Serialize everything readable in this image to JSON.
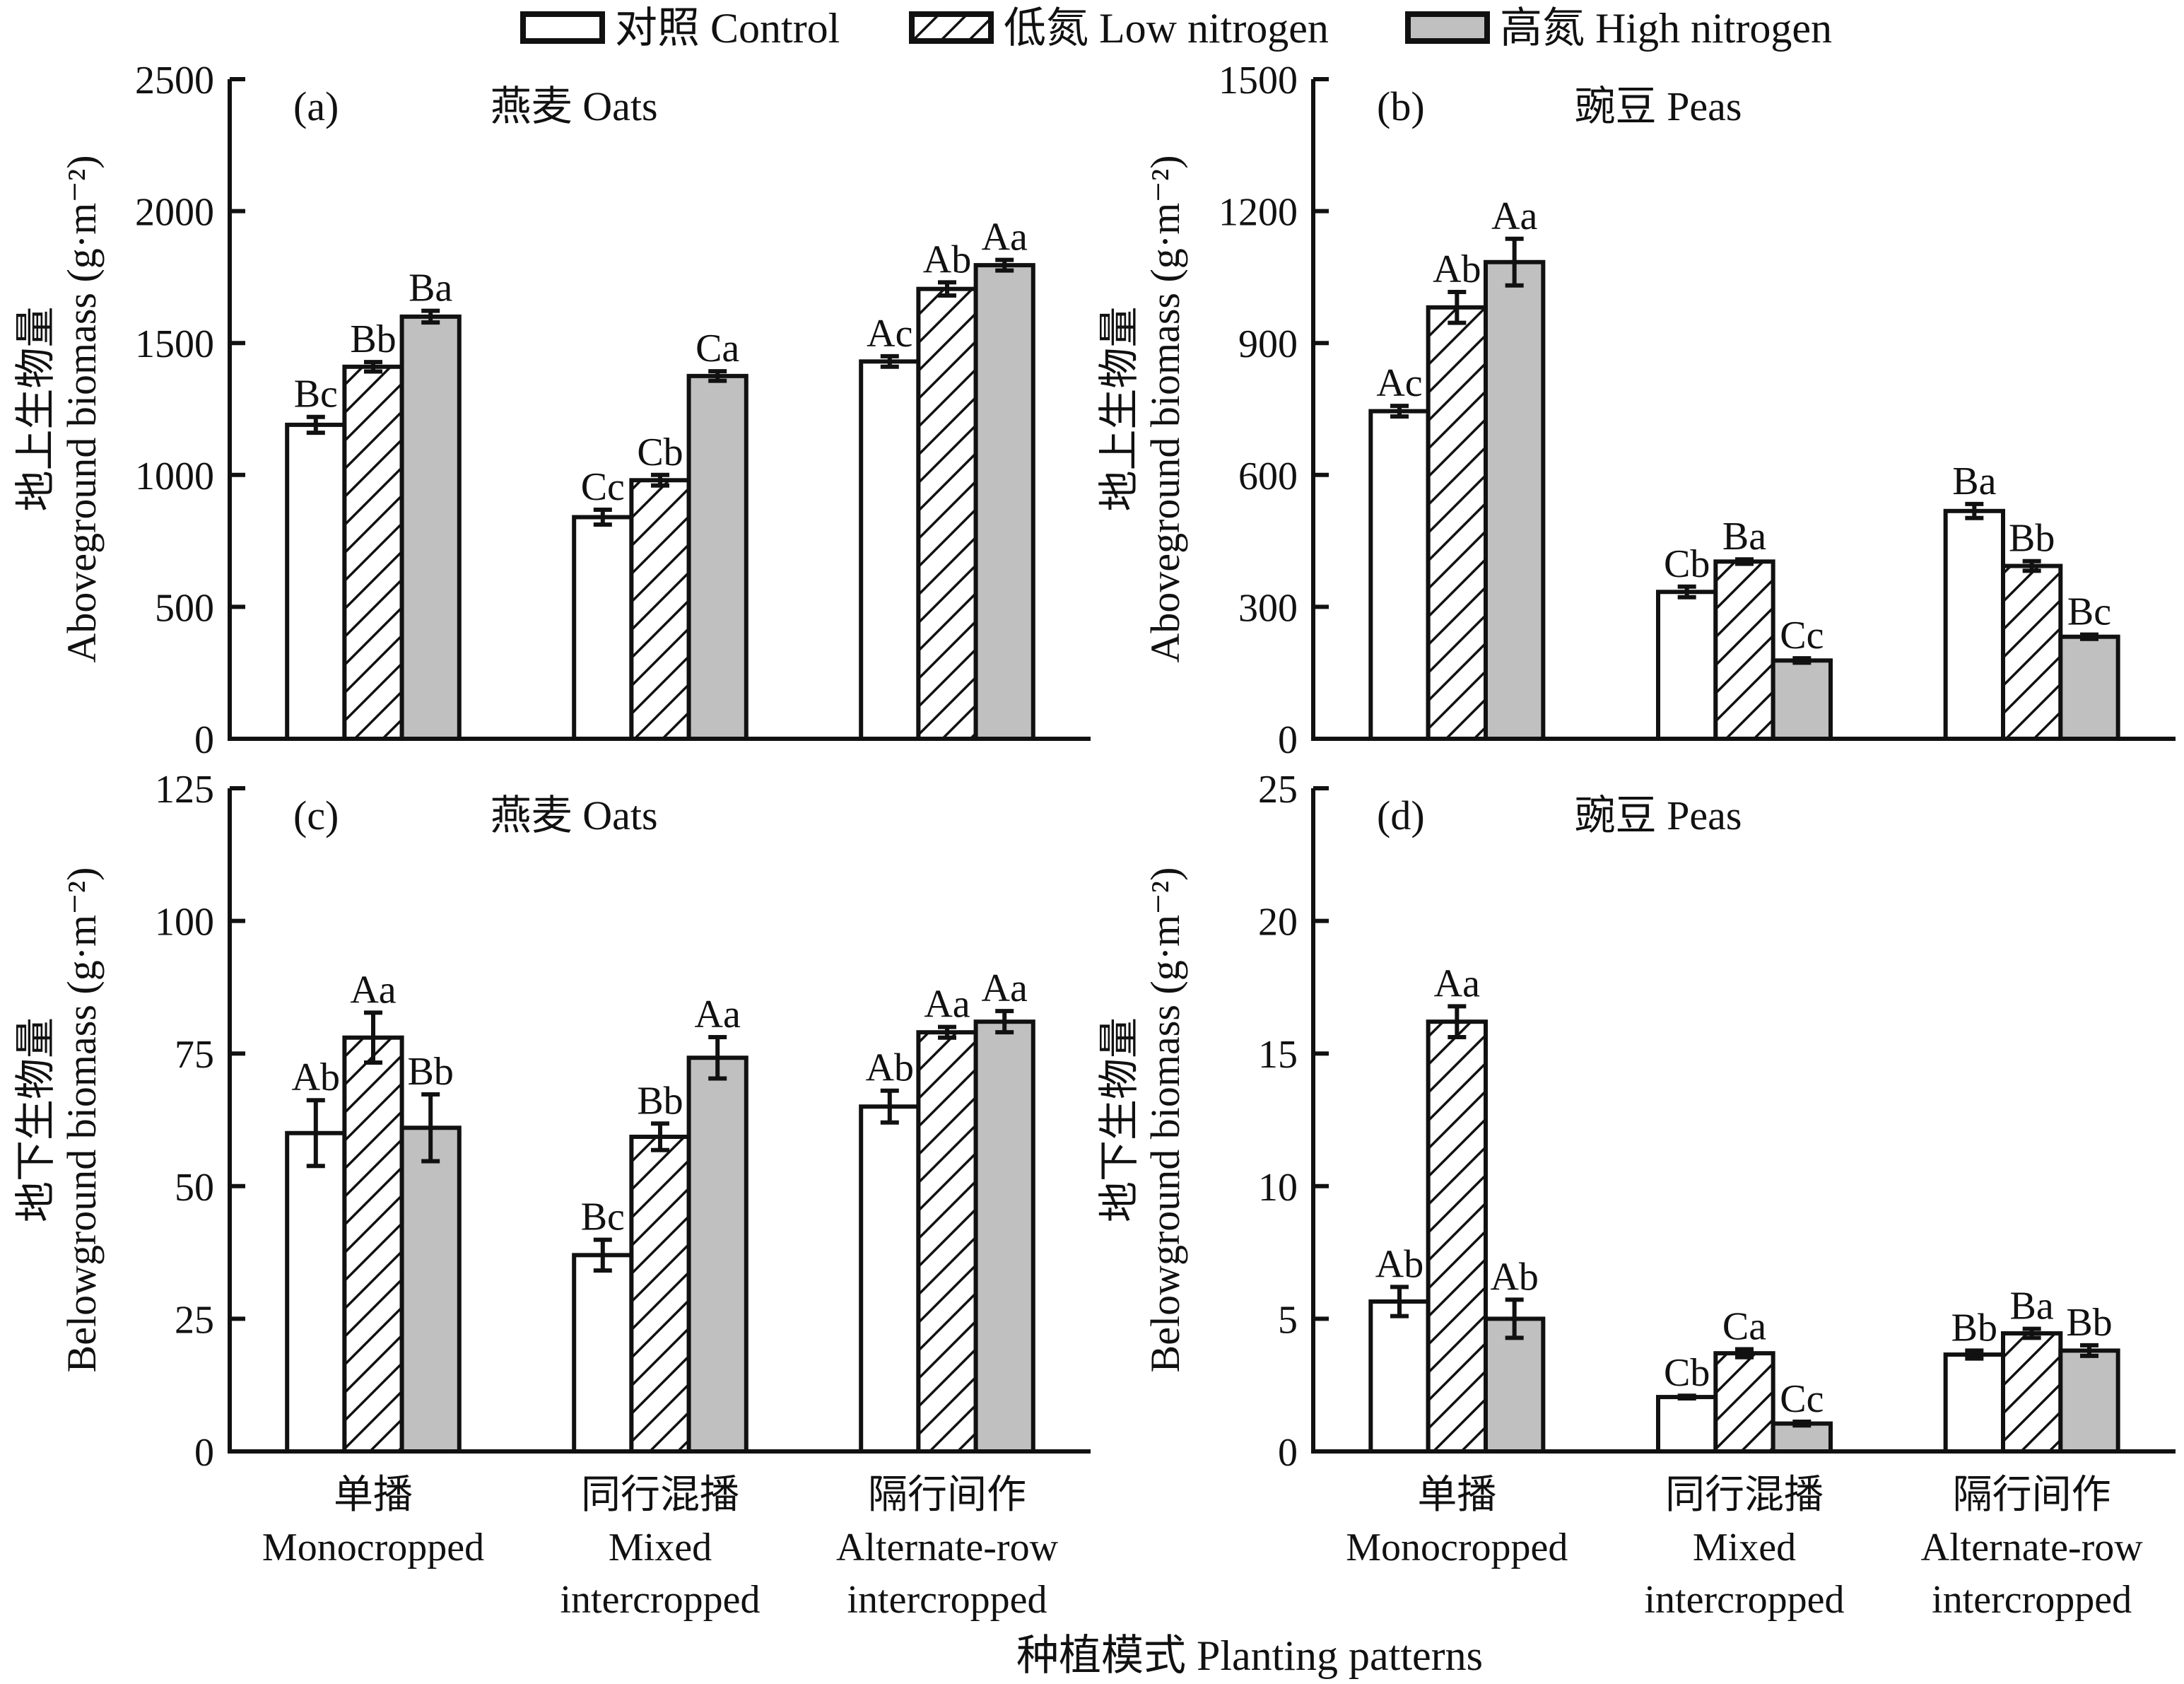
{
  "legend": [
    {
      "key": "control",
      "label": "对照 Control",
      "fill": "white"
    },
    {
      "key": "low",
      "label": "低氮 Low nitrogen",
      "fill": "hatch"
    },
    {
      "key": "high",
      "label": "高氮 High nitrogen",
      "fill": "#c0c0c0"
    }
  ],
  "xlabel": "种植模式 Planting patterns",
  "colors": {
    "ink": "#111111",
    "gray": "#c0c0c0",
    "white": "#ffffff"
  },
  "chart_data": [
    {
      "id": "a",
      "type": "bar",
      "panel_letter": "(a)",
      "title": "燕麦 Oats",
      "ylabel_cn": "地上生物量",
      "ylabel_en": "Aboveground biomass (g·m⁻²)",
      "ylim": [
        0,
        2500
      ],
      "yticks": [
        0,
        500,
        1000,
        1500,
        2000,
        2500
      ],
      "categories": [
        [
          "单播",
          "Monocropped"
        ],
        [
          "同行混播",
          "Mixed",
          "intercropped"
        ],
        [
          "隔行间作",
          "Alternate-row",
          "intercropped"
        ]
      ],
      "series": [
        {
          "name": "对照 Control",
          "values": [
            1190,
            840,
            1430
          ],
          "errors": [
            30,
            28,
            20
          ],
          "labels": [
            "Bc",
            "Cc",
            "Ac"
          ]
        },
        {
          "name": "低氮 Low nitrogen",
          "values": [
            1410,
            980,
            1705
          ],
          "errors": [
            18,
            20,
            25
          ],
          "labels": [
            "Bb",
            "Cb",
            "Ab"
          ]
        },
        {
          "name": "高氮 High nitrogen",
          "values": [
            1600,
            1375,
            1795
          ],
          "errors": [
            22,
            18,
            20
          ],
          "labels": [
            "Ba",
            "Ca",
            "Aa"
          ]
        }
      ]
    },
    {
      "id": "b",
      "type": "bar",
      "panel_letter": "(b)",
      "title": "豌豆 Peas",
      "ylabel_cn": "地上生物量",
      "ylabel_en": "Aboveground biomass (g·m⁻²)",
      "ylim": [
        0,
        1500
      ],
      "yticks": [
        0,
        300,
        600,
        900,
        1200,
        1500
      ],
      "categories": [
        [
          "单播",
          "Monocropped"
        ],
        [
          "同行混播",
          "Mixed",
          "intercropped"
        ],
        [
          "隔行间作",
          "Alternate-row",
          "intercropped"
        ]
      ],
      "series": [
        {
          "name": "对照 Control",
          "values": [
            745,
            334,
            518
          ],
          "errors": [
            12,
            12,
            16
          ],
          "labels": [
            "Ac",
            "Cb",
            "Ba"
          ]
        },
        {
          "name": "低氮 Low nitrogen",
          "values": [
            981,
            403,
            393
          ],
          "errors": [
            35,
            5,
            11
          ],
          "labels": [
            "Ab",
            "Ba",
            "Bb"
          ]
        },
        {
          "name": "高氮 High nitrogen",
          "values": [
            1084,
            178,
            232
          ],
          "errors": [
            53,
            5,
            5
          ],
          "labels": [
            "Aa",
            "Cc",
            "Bc"
          ]
        }
      ]
    },
    {
      "id": "c",
      "type": "bar",
      "panel_letter": "(c)",
      "title": "燕麦 Oats",
      "ylabel_cn": "地下生物量",
      "ylabel_en": "Belowground biomass (g·m⁻²)",
      "ylim": [
        0,
        125
      ],
      "yticks": [
        0,
        25,
        50,
        75,
        100,
        125
      ],
      "categories": [
        [
          "单播",
          "Monocropped"
        ],
        [
          "同行混播",
          "Mixed",
          "intercropped"
        ],
        [
          "隔行间作",
          "Alternate-row",
          "intercropped"
        ]
      ],
      "series": [
        {
          "name": "对照 Control",
          "values": [
            60,
            37,
            65
          ],
          "errors": [
            6.2,
            2.9,
            3.0
          ],
          "labels": [
            "Ab",
            "Bc",
            "Ab"
          ]
        },
        {
          "name": "低氮 Low nitrogen",
          "values": [
            78,
            59.3,
            79
          ],
          "errors": [
            4.7,
            2.5,
            1.0
          ],
          "labels": [
            "Aa",
            "Bb",
            "Aa"
          ]
        },
        {
          "name": "高氮 High nitrogen",
          "values": [
            61,
            74.2,
            81
          ],
          "errors": [
            6.3,
            3.9,
            2.0
          ],
          "labels": [
            "Bb",
            "Aa",
            "Aa"
          ]
        }
      ]
    },
    {
      "id": "d",
      "type": "bar",
      "panel_letter": "(d)",
      "title": "豌豆 Peas",
      "ylabel_cn": "地下生物量",
      "ylabel_en": "Belowground biomass (g·m⁻²)",
      "ylim": [
        0,
        25
      ],
      "yticks": [
        0,
        5,
        10,
        15,
        20,
        25
      ],
      "categories": [
        [
          "单播",
          "Monocropped"
        ],
        [
          "同行混播",
          "Mixed",
          "intercropped"
        ],
        [
          "隔行间作",
          "Alternate-row",
          "intercropped"
        ]
      ],
      "series": [
        {
          "name": "对照 Control",
          "values": [
            5.65,
            2.05,
            3.65
          ],
          "errors": [
            0.55,
            0.05,
            0.15
          ],
          "labels": [
            "Ab",
            "Cb",
            "Bb"
          ]
        },
        {
          "name": "低氮 Low nitrogen",
          "values": [
            16.2,
            3.7,
            4.45
          ],
          "errors": [
            0.58,
            0.15,
            0.17
          ],
          "labels": [
            "Aa",
            "Ca",
            "Ba"
          ]
        },
        {
          "name": "高氮 High nitrogen",
          "values": [
            5.0,
            1.05,
            3.8
          ],
          "errors": [
            0.72,
            0.07,
            0.2
          ],
          "labels": [
            "Ab",
            "Cc",
            "Bb"
          ]
        }
      ]
    }
  ]
}
